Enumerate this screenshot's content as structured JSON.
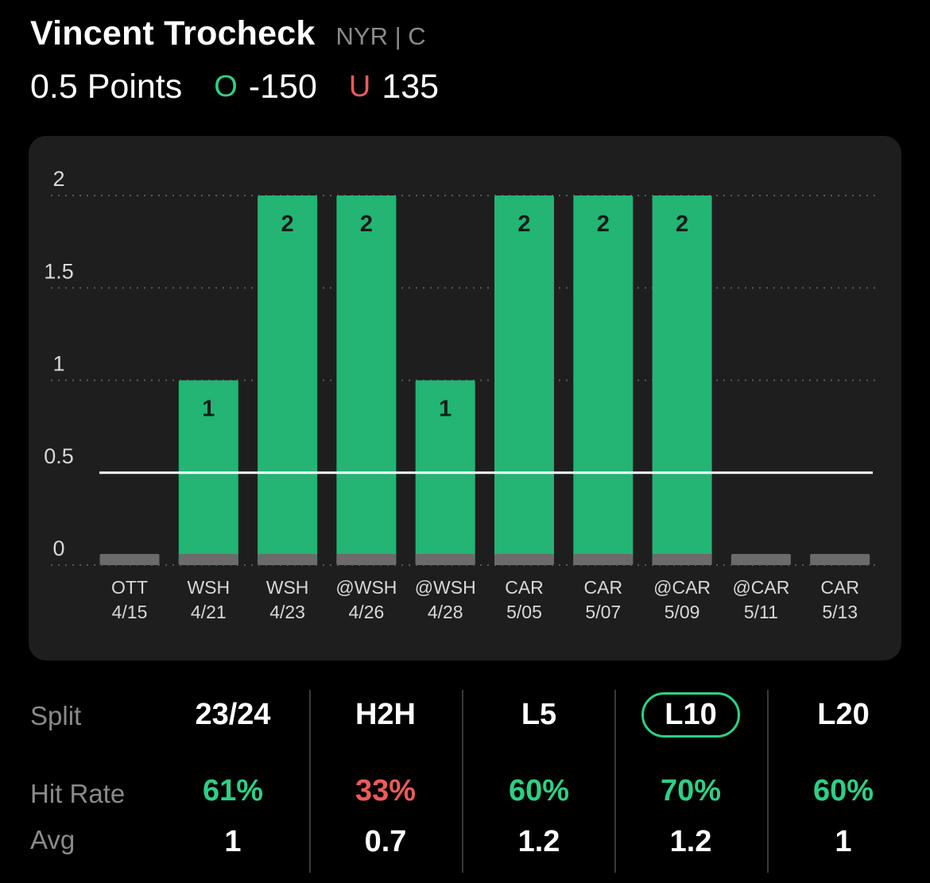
{
  "header": {
    "player_name": "Vincent Trocheck",
    "player_meta": "NYR | C",
    "line_label": "0.5 Points",
    "over_symbol": "O",
    "over_odds": "-150",
    "under_symbol": "U",
    "under_odds": "135"
  },
  "colors": {
    "hit": "#22b574",
    "miss": "#6b6b6b",
    "accent_green": "#2ecf85",
    "accent_red": "#ef5a5a"
  },
  "chart_data": {
    "type": "bar",
    "line_value": 0.5,
    "ylim": [
      0,
      2
    ],
    "yticks": [
      0,
      0.5,
      1,
      1.5,
      2
    ],
    "ytick_labels": [
      "0",
      "0.5",
      "1",
      "1.5",
      "2"
    ],
    "grid": true,
    "categories": [
      {
        "opp": "OTT",
        "date": "4/15"
      },
      {
        "opp": "WSH",
        "date": "4/21"
      },
      {
        "opp": "WSH",
        "date": "4/23"
      },
      {
        "opp": "@WSH",
        "date": "4/26"
      },
      {
        "opp": "@WSH",
        "date": "4/28"
      },
      {
        "opp": "CAR",
        "date": "5/05"
      },
      {
        "opp": "CAR",
        "date": "5/07"
      },
      {
        "opp": "@CAR",
        "date": "5/09"
      },
      {
        "opp": "@CAR",
        "date": "5/11"
      },
      {
        "opp": "CAR",
        "date": "5/13"
      }
    ],
    "values": [
      0,
      1,
      2,
      2,
      1,
      2,
      2,
      2,
      0,
      0
    ]
  },
  "splits": {
    "row_labels": {
      "split": "Split",
      "hit_rate": "Hit Rate",
      "avg": "Avg"
    },
    "columns": [
      {
        "label": "23/24",
        "hit_rate": "61%",
        "hit_color": "#2ecf85",
        "avg": "1",
        "active": false
      },
      {
        "label": "H2H",
        "hit_rate": "33%",
        "hit_color": "#ef5a5a",
        "avg": "0.7",
        "active": false
      },
      {
        "label": "L5",
        "hit_rate": "60%",
        "hit_color": "#2ecf85",
        "avg": "1.2",
        "active": false
      },
      {
        "label": "L10",
        "hit_rate": "70%",
        "hit_color": "#2ecf85",
        "avg": "1.2",
        "active": true
      },
      {
        "label": "L20",
        "hit_rate": "60%",
        "hit_color": "#2ecf85",
        "avg": "1",
        "active": false
      }
    ]
  }
}
